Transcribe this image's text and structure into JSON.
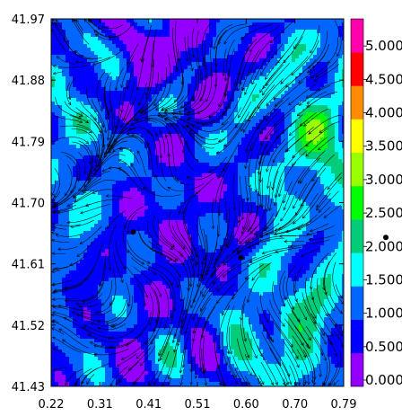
{
  "chart_data": {
    "type": "heatmap",
    "subtype": "filled contour map with streamline overlay",
    "title": "",
    "xlabel": "",
    "ylabel": "",
    "xlim": [
      0.22,
      0.79
    ],
    "ylim": [
      41.43,
      41.97
    ],
    "x_ticks": [
      "0.22",
      "0.31",
      "0.41",
      "0.51",
      "0.60",
      "0.70",
      "0.79"
    ],
    "y_ticks": [
      "41.43",
      "41.52",
      "41.61",
      "41.70",
      "41.79",
      "41.88",
      "41.97"
    ],
    "grid": false,
    "legend": "none",
    "colorbar": {
      "placement": "right",
      "min": 0.0,
      "max": 5.5,
      "step": 0.5,
      "tick_labels": [
        "0.000",
        "0.500",
        "1.000",
        "1.500",
        "2.000",
        "2.500",
        "3.000",
        "3.500",
        "4.000",
        "4.500",
        "5.000"
      ],
      "level_colors": [
        "#9400ff",
        "#0000ff",
        "#0066ff",
        "#00ffff",
        "#00cc7a",
        "#00ff00",
        "#99ff00",
        "#ffff00",
        "#ff8c00",
        "#ff0000",
        "#ff00aa"
      ]
    },
    "field_summary": {
      "dominant_range": [
        0.5,
        1.5
      ],
      "high_region": "right side (upper-right and lower-right), values 1.5-2.5",
      "low_region": "top-left, values 0.0-0.5"
    },
    "markers": [
      {
        "x": 0.38,
        "y": 41.657
      },
      {
        "x": 0.59,
        "y": 41.619
      }
    ],
    "outside_marker": {
      "colorbar_value": 2.0
    }
  }
}
